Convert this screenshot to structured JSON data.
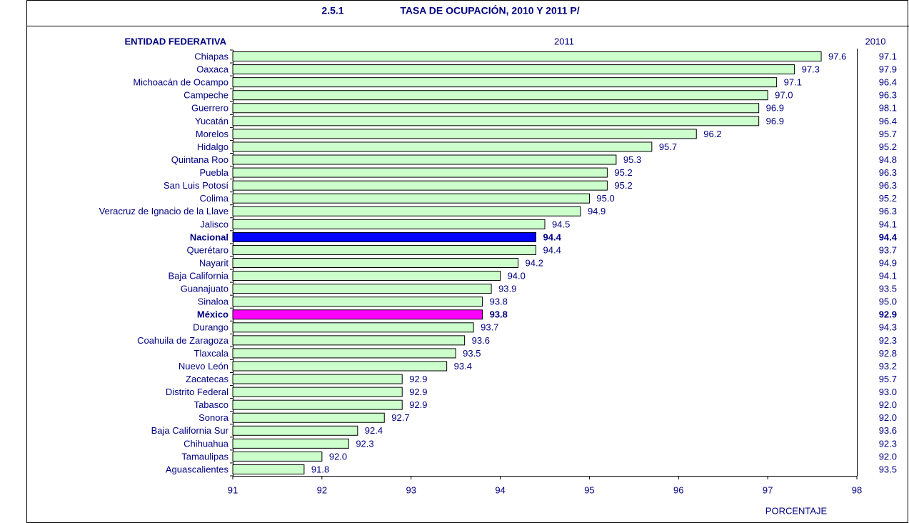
{
  "chart_data": {
    "type": "bar",
    "orientation": "horizontal",
    "title_number": "2.5.1",
    "title": "TASA DE OCUPACIÓN, 2010 Y 2011 P/",
    "category_header": "ENTIDAD FEDERATIVA",
    "x_label": "PORCENTAJE",
    "categories": [
      "Chiapas",
      "Oaxaca",
      "Michoacán de Ocampo",
      "Campeche",
      "Guerrero",
      "Yucatán",
      "Morelos",
      "Hidalgo",
      "Quintana Roo",
      "Puebla",
      "San Luis Potosí",
      "Colima",
      "Veracruz de Ignacio de la Llave",
      "Jalisco",
      "Nacional",
      "Querétaro",
      "Nayarit",
      "Baja California",
      "Guanajuato",
      "Sinaloa",
      "México",
      "Durango",
      "Coahuila de Zaragoza",
      "Tlaxcala",
      "Nuevo León",
      "Zacatecas",
      "Distrito Federal",
      "Tabasco",
      "Sonora",
      "Baja California Sur",
      "Chihuahua",
      "Tamaulipas",
      "Aguascalientes"
    ],
    "series": [
      {
        "name": "2011",
        "color": "#ccffcc",
        "values": [
          97.6,
          97.3,
          97.1,
          97.0,
          96.9,
          96.9,
          96.2,
          95.7,
          95.3,
          95.2,
          95.2,
          95.0,
          94.9,
          94.5,
          94.4,
          94.4,
          94.2,
          94.0,
          93.9,
          93.8,
          93.8,
          93.7,
          93.6,
          93.5,
          93.4,
          92.9,
          92.9,
          92.9,
          92.7,
          92.4,
          92.3,
          92.0,
          91.8
        ],
        "value_labels": [
          "97.6",
          "97.3",
          "97.1",
          "97.0",
          "96.9",
          "96.9",
          "96.2",
          "95.7",
          "95.3",
          "95.2",
          "95.2",
          "95.0",
          "94.9",
          "94.5",
          "94.4",
          "94.4",
          "94.2",
          "94.0",
          "93.9",
          "93.8",
          "93.8",
          "93.7",
          "93.6",
          "93.5",
          "93.4",
          "92.9",
          "92.9",
          "92.9",
          "92.7",
          "92.4",
          "92.3",
          "92.0",
          "91.8"
        ],
        "colors": [
          "#ccffcc",
          "#ccffcc",
          "#ccffcc",
          "#ccffcc",
          "#ccffcc",
          "#ccffcc",
          "#ccffcc",
          "#ccffcc",
          "#ccffcc",
          "#ccffcc",
          "#ccffcc",
          "#ccffcc",
          "#ccffcc",
          "#ccffcc",
          "#0000ff",
          "#ccffcc",
          "#ccffcc",
          "#ccffcc",
          "#ccffcc",
          "#ccffcc",
          "#ff00ff",
          "#ccffcc",
          "#ccffcc",
          "#ccffcc",
          "#ccffcc",
          "#ccffcc",
          "#ccffcc",
          "#ccffcc",
          "#ccffcc",
          "#ccffcc",
          "#ccffcc",
          "#ccffcc",
          "#ccffcc"
        ]
      }
    ],
    "column_2010": {
      "header": "2010",
      "values": [
        "97.1",
        "97.9",
        "96.4",
        "96.3",
        "98.1",
        "96.4",
        "95.7",
        "95.2",
        "94.8",
        "96.3",
        "96.3",
        "95.2",
        "96.3",
        "94.1",
        "94.4",
        "93.7",
        "94.9",
        "94.1",
        "93.5",
        "95.0",
        "92.9",
        "94.3",
        "92.3",
        "92.8",
        "93.2",
        "95.7",
        "93.0",
        "92.0",
        "92.0",
        "93.6",
        "92.3",
        "92.0",
        "93.5"
      ]
    },
    "xlim": [
      91,
      98
    ],
    "xticks": [
      91,
      92,
      93,
      94,
      95,
      96,
      97,
      98
    ]
  }
}
